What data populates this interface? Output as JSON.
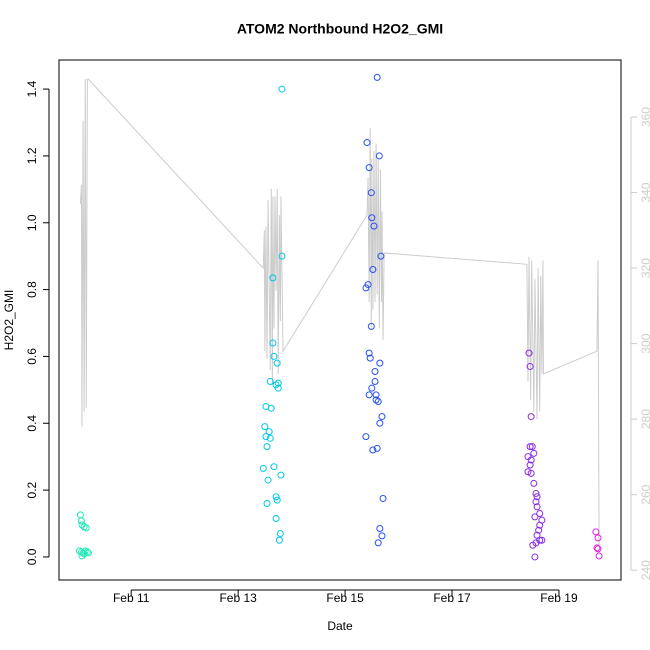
{
  "chart_data": {
    "type": "scatter",
    "title": "ATOM2 Northbound H2O2_GMI",
    "x_label": "Date",
    "y_label": "H2O2_GMI",
    "xlim": [
      9.65,
      20.16
    ],
    "xticks": [
      {
        "value": 11,
        "label": "Feb 11"
      },
      {
        "value": 13,
        "label": "Feb 13"
      },
      {
        "value": 15,
        "label": "Feb 15"
      },
      {
        "value": 17,
        "label": "Feb 17"
      },
      {
        "value": 19,
        "label": "Feb 19"
      }
    ],
    "ylim": [
      -0.069,
      1.487
    ],
    "yticks": [
      {
        "value": 0,
        "label": "0.0"
      },
      0.2,
      0.4,
      0.6,
      0.8,
      {
        "value": 1,
        "label": "1.0"
      },
      1.2,
      1.4
    ],
    "y2lim": [
      237.4,
      375.1
    ],
    "y2ticks": [
      240,
      260,
      280,
      300,
      320,
      340,
      360
    ],
    "y2_color": "#cccccc",
    "series": [
      {
        "color": "#1de9b6",
        "x": [
          10.05,
          10.07,
          10.08,
          10.12,
          10.16,
          10.03,
          10.07,
          10.1,
          10.14,
          10.18,
          10.08,
          10.12,
          10.2
        ],
        "values": [
          0.126,
          0.108,
          0.096,
          0.09,
          0.087,
          0.018,
          0.015,
          0.012,
          0.018,
          0.015,
          0.003,
          0.009,
          0.012
        ]
      },
      {
        "color": "#00c8e8",
        "x": [
          13.82,
          13.82,
          13.65,
          13.65,
          13.67,
          13.73,
          13.6,
          13.71,
          13.75,
          13.75,
          13.52,
          13.62,
          13.5,
          13.58,
          13.52,
          13.6,
          13.54,
          13.67,
          13.47,
          13.8,
          13.56,
          13.71,
          13.73,
          13.54,
          13.71,
          13.79,
          13.77
        ],
        "values": [
          1.4,
          0.9,
          0.835,
          0.64,
          0.6,
          0.58,
          0.525,
          0.515,
          0.52,
          0.505,
          0.45,
          0.445,
          0.39,
          0.375,
          0.36,
          0.355,
          0.33,
          0.27,
          0.265,
          0.245,
          0.23,
          0.18,
          0.17,
          0.16,
          0.115,
          0.07,
          0.05
        ]
      },
      {
        "color": "#2850f0",
        "x": [
          15.6,
          15.41,
          15.64,
          15.45,
          15.49,
          15.5,
          15.54,
          15.67,
          15.52,
          15.43,
          15.39,
          15.49,
          15.45,
          15.47,
          15.65,
          15.56,
          15.56,
          15.5,
          15.45,
          15.58,
          15.58,
          15.62,
          15.69,
          15.65,
          15.39,
          15.52,
          15.6,
          15.71,
          15.65,
          15.69,
          15.62
        ],
        "values": [
          1.435,
          1.24,
          1.2,
          1.165,
          1.09,
          1.015,
          0.99,
          0.9,
          0.86,
          0.815,
          0.805,
          0.69,
          0.61,
          0.595,
          0.58,
          0.555,
          0.525,
          0.505,
          0.485,
          0.485,
          0.47,
          0.465,
          0.42,
          0.4,
          0.36,
          0.32,
          0.325,
          0.175,
          0.085,
          0.063,
          0.042
        ]
      },
      {
        "color": "#8a2be2",
        "x": [
          18.44,
          18.46,
          18.48,
          18.46,
          18.5,
          18.53,
          18.42,
          18.48,
          18.46,
          18.42,
          18.48,
          18.53,
          18.57,
          18.59,
          18.57,
          18.59,
          18.64,
          18.55,
          18.68,
          18.64,
          18.62,
          18.59,
          18.64,
          18.57,
          18.68,
          18.51,
          18.55
        ],
        "values": [
          0.61,
          0.57,
          0.42,
          0.33,
          0.33,
          0.31,
          0.3,
          0.29,
          0.275,
          0.255,
          0.25,
          0.22,
          0.19,
          0.18,
          0.165,
          0.15,
          0.13,
          0.12,
          0.11,
          0.095,
          0.08,
          0.065,
          0.05,
          0.042,
          0.05,
          0.035,
          0.0
        ]
      },
      {
        "color": "#e020e0",
        "x": [
          19.69,
          19.73,
          19.71,
          19.73,
          19.75
        ],
        "values": [
          0.075,
          0.057,
          0.027,
          0.024,
          0.003
        ]
      },
      {
        "type": "line",
        "axis": "y2",
        "color": "#cccccc",
        "x": [
          10.05,
          10.07,
          10.08,
          10.1,
          10.12,
          10.14,
          10.16,
          10.18,
          10.2,
          13.47,
          13.49,
          13.5,
          13.52,
          13.54,
          13.56,
          13.6,
          13.62,
          13.64,
          13.65,
          13.67,
          13.69,
          13.71,
          13.73,
          13.75,
          13.77,
          13.79,
          13.8,
          13.84,
          15.41,
          15.43,
          15.45,
          15.47,
          15.49,
          15.5,
          15.52,
          15.54,
          15.56,
          15.58,
          15.6,
          15.62,
          15.64,
          15.66,
          15.68,
          15.69,
          15.71,
          15.73,
          18.4,
          18.42,
          18.44,
          18.47,
          18.49,
          18.53,
          18.55,
          18.59,
          18.61,
          18.64,
          18.66,
          18.68,
          18.7,
          18.71,
          19.71,
          19.73,
          19.75
        ],
        "values": [
          337,
          342,
          278,
          359,
          282,
          370,
          283,
          370,
          370,
          320,
          330,
          298,
          331,
          296,
          338,
          293,
          341,
          289,
          339,
          304,
          339,
          314,
          341,
          292,
          334,
          306,
          339,
          298,
          334,
          344,
          311,
          357,
          304,
          349,
          309,
          351,
          311,
          353,
          313,
          349,
          304,
          346,
          311,
          335,
          301,
          324,
          321,
          290,
          323,
          285,
          322,
          282,
          317,
          280,
          320,
          282,
          318,
          292,
          322,
          292,
          298,
          322,
          246
        ]
      }
    ]
  }
}
